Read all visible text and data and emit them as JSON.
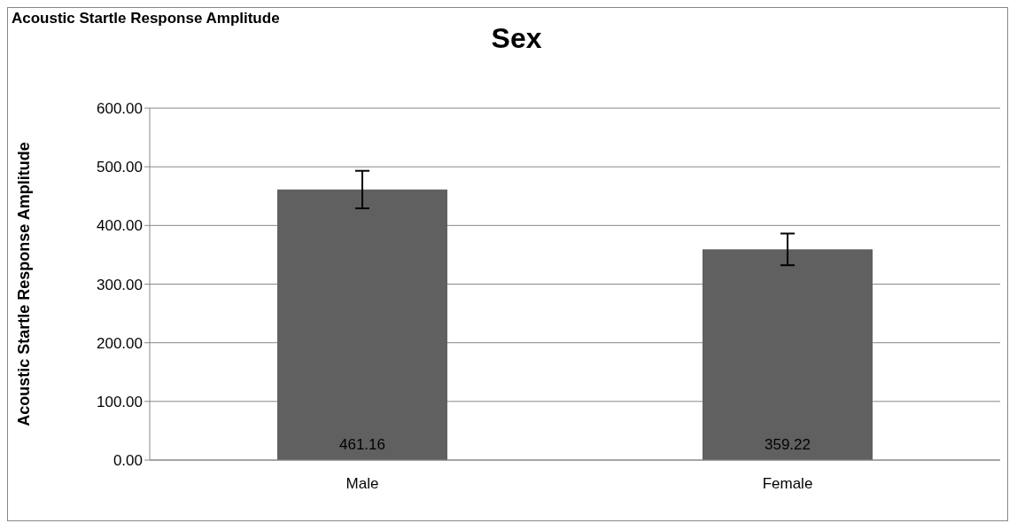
{
  "chart_data": {
    "type": "bar",
    "title": "Sex",
    "ylabel": "Acoustic Startle Response Amplitude",
    "annotations": [
      "Acoustic Startle Response Amplitude"
    ],
    "categories": [
      "Male",
      "Female"
    ],
    "values": [
      461.16,
      359.22
    ],
    "errors": [
      32,
      27
    ],
    "color": "#606060",
    "ylim": [
      0,
      600
    ],
    "yticks": [
      {
        "value": 0,
        "label": "0.00"
      },
      {
        "value": 100,
        "label": "100.00"
      },
      {
        "value": 200,
        "label": "200.00"
      },
      {
        "value": 300,
        "label": "300.00"
      },
      {
        "value": 400,
        "label": "400.00"
      },
      {
        "value": 500,
        "label": "500.00"
      },
      {
        "value": 600,
        "label": "600.00"
      }
    ],
    "grid": "y",
    "data_labels": true,
    "legend": false
  }
}
